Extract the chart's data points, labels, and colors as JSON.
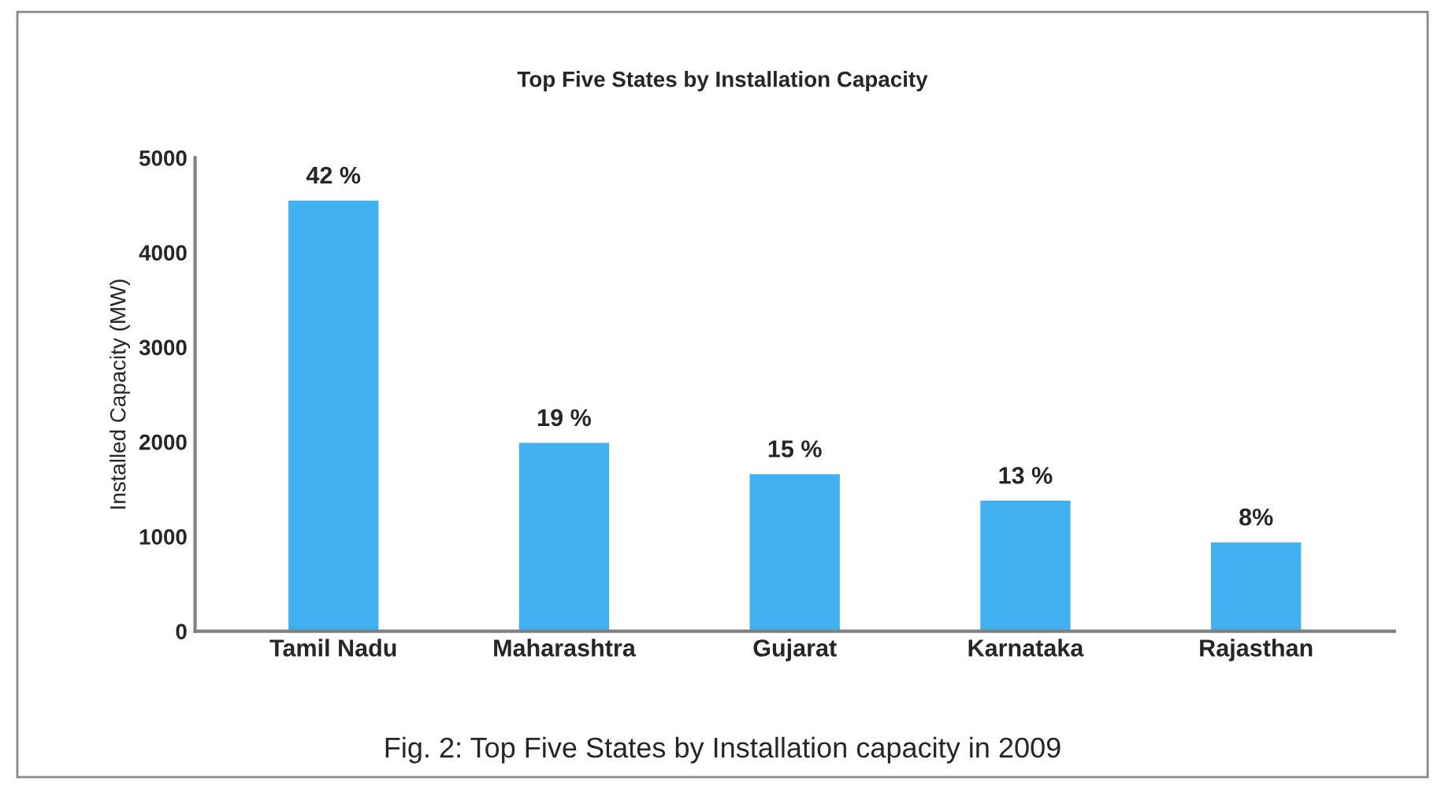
{
  "chart_data": {
    "type": "bar",
    "title": "Top Five States by Installation Capacity",
    "ylabel": "Installed Capacity (MW)",
    "categories": [
      "Tamil Nadu",
      "Maharashtra",
      "Gujarat",
      "Karnataka",
      "Rajasthan"
    ],
    "values": [
      4560,
      2000,
      1670,
      1390,
      950
    ],
    "color": "#41b0f0",
    "ylim": [
      0,
      5000
    ],
    "yticks": [
      0,
      1000,
      2000,
      3000,
      4000,
      5000
    ],
    "grid": false,
    "annotations": [
      {
        "text": "42 %",
        "x": "Tamil Nadu",
        "y": 4560
      },
      {
        "text": "19 %",
        "x": "Maharashtra",
        "y": 2000
      },
      {
        "text": "15 %",
        "x": "Gujarat",
        "y": 1670
      },
      {
        "text": "13 %",
        "x": "Karnataka",
        "y": 1390
      },
      {
        "text": "8%",
        "x": "Rajasthan",
        "y": 950
      },
      "Fig. 2: Top Five States by Installation capacity in 2009"
    ]
  }
}
